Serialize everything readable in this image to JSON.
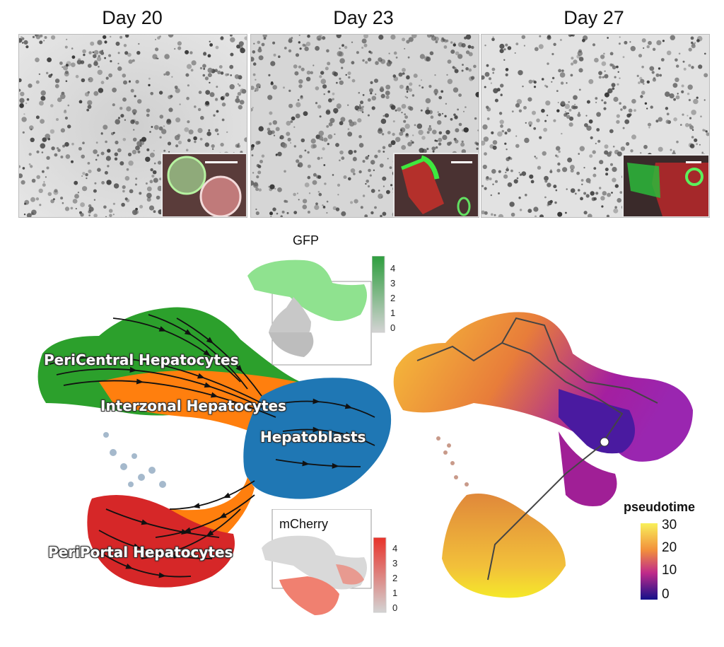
{
  "panels": [
    {
      "title": "Day 20"
    },
    {
      "title": "Day 23"
    },
    {
      "title": "Day 27"
    }
  ],
  "umap": {
    "clusters": [
      {
        "label": "PeriCentral Hepatocytes",
        "color": "#2ca02c"
      },
      {
        "label": "Interzonal Hepatocytes",
        "color": "#ff7f0e"
      },
      {
        "label": "Hepatoblasts",
        "color": "#1f77b4"
      },
      {
        "label": "PeriPortal Hepatocytes",
        "color": "#d62728"
      }
    ]
  },
  "gfp": {
    "title": "GFP",
    "ticks": [
      "4",
      "3",
      "2",
      "1",
      "0"
    ],
    "color_high": "#2e9e3e",
    "color_low": "#d3d3d3"
  },
  "mcherry": {
    "title": "mCherry",
    "ticks": [
      "4",
      "3",
      "2",
      "1",
      "0"
    ],
    "color_high": "#e8322a",
    "color_low": "#d3d3d3"
  },
  "pseudotime": {
    "title": "pseudotime",
    "ticks": [
      "30",
      "20",
      "10",
      "0"
    ]
  }
}
